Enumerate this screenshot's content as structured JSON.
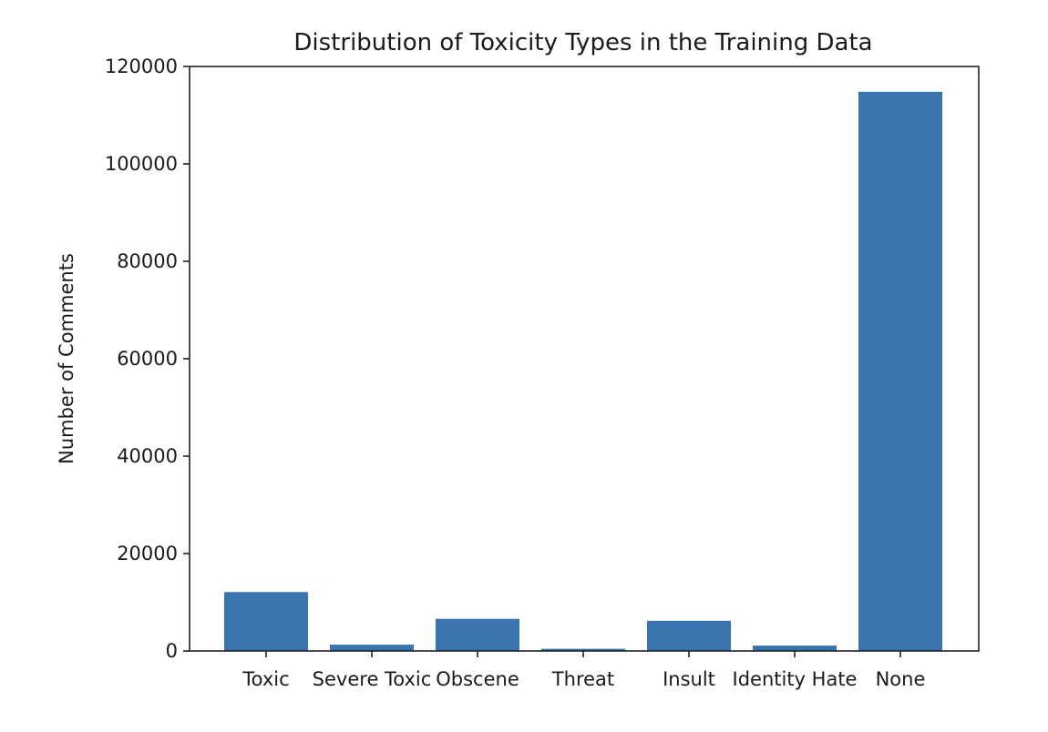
{
  "chart_data": {
    "type": "bar",
    "title": "Distribution of Toxicity Types in the Training Data",
    "xlabel": "",
    "ylabel": "Number of Comments",
    "categories": [
      "Toxic",
      "Severe Toxic",
      "Obscene",
      "Threat",
      "Insult",
      "Identity Hate",
      "None"
    ],
    "values": [
      12100,
      1300,
      6600,
      450,
      6200,
      1100,
      114800
    ],
    "ylim": [
      0,
      120000
    ],
    "yticks": [
      0,
      20000,
      40000,
      60000,
      80000,
      100000,
      120000
    ],
    "grid": false,
    "bar_color": "#3a74ae"
  }
}
